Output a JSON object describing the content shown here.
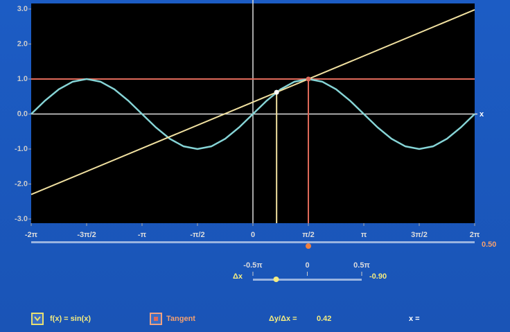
{
  "plot": {
    "xlim": [
      -6.283,
      6.283
    ],
    "ylim": [
      -3,
      3
    ],
    "xticks": [
      {
        "value": -6.283,
        "label": "-2π"
      },
      {
        "value": -4.712,
        "label": "-3π/2"
      },
      {
        "value": -3.142,
        "label": "-π"
      },
      {
        "value": -1.571,
        "label": "-π/2"
      },
      0,
      {
        "value": 1.571,
        "label": "π/2"
      },
      {
        "value": 3.142,
        "label": "π"
      },
      {
        "value": 4.712,
        "label": "3π/2"
      },
      {
        "value": 6.283,
        "label": "2π"
      }
    ],
    "yticks": [
      {
        "value": -3,
        "label": "-3.0"
      },
      {
        "value": -2,
        "label": "-2.0"
      },
      {
        "value": -1,
        "label": "-1.0"
      },
      {
        "value": 0,
        "label": "0.0"
      },
      {
        "value": 1,
        "label": "1.0"
      },
      {
        "value": 2,
        "label": "2.0"
      },
      {
        "value": 3,
        "label": "3.0"
      }
    ],
    "x_axis_label": "x",
    "curve": {
      "color": "#86d4d6",
      "x": [
        -6.283,
        -5.89,
        -5.498,
        -5.105,
        -4.712,
        -4.32,
        -3.927,
        -3.534,
        -3.142,
        -2.749,
        -2.356,
        -1.963,
        -1.571,
        -1.178,
        -0.785,
        -0.393,
        0,
        0.393,
        0.785,
        1.178,
        1.571,
        1.963,
        2.356,
        2.749,
        3.142,
        3.534,
        3.927,
        4.32,
        4.712,
        5.105,
        5.498,
        5.89,
        6.283
      ],
      "values": [
        0,
        0.383,
        0.707,
        0.924,
        1,
        0.924,
        0.707,
        0.383,
        0,
        -0.383,
        -0.707,
        -0.924,
        -1,
        -0.924,
        -0.707,
        -0.383,
        0,
        0.383,
        0.707,
        0.924,
        1,
        0.924,
        0.707,
        0.383,
        0,
        -0.383,
        -0.707,
        -0.924,
        -1,
        -0.924,
        -0.707,
        -0.383,
        0
      ]
    },
    "secant": {
      "color": "#f0e0a0",
      "x": [
        -6.283,
        6.283
      ],
      "values": [
        -2.299,
        2.979
      ]
    },
    "tangent": {
      "color": "#e06a5a",
      "x": [
        -6.283,
        6.283
      ],
      "values": [
        1,
        1
      ]
    },
    "secant_point": {
      "x": 0.671,
      "y": 0.622,
      "color": "#f0e0a0"
    },
    "tangent_point": {
      "x": 1.571,
      "y": 1,
      "color": "#e06a5a"
    }
  },
  "x_slider": {
    "xlim": [
      -2,
      2
    ],
    "value": 0.5,
    "value_label": "0.50"
  },
  "dx_slider": {
    "label": "Δx",
    "xlim": [
      -1.571,
      1.571
    ],
    "ticks": [
      {
        "value": -1.571,
        "label": "-0.5π"
      },
      0,
      {
        "value": 1.571,
        "label": "0.5π"
      }
    ],
    "value": -0.9,
    "value_label": "-0.90"
  },
  "legend": {
    "function": "f(x) = sin(x)",
    "tangent": "Tangent",
    "slope_label": "Δy/Δx =",
    "slope": 0.42,
    "x_label": "x ="
  }
}
